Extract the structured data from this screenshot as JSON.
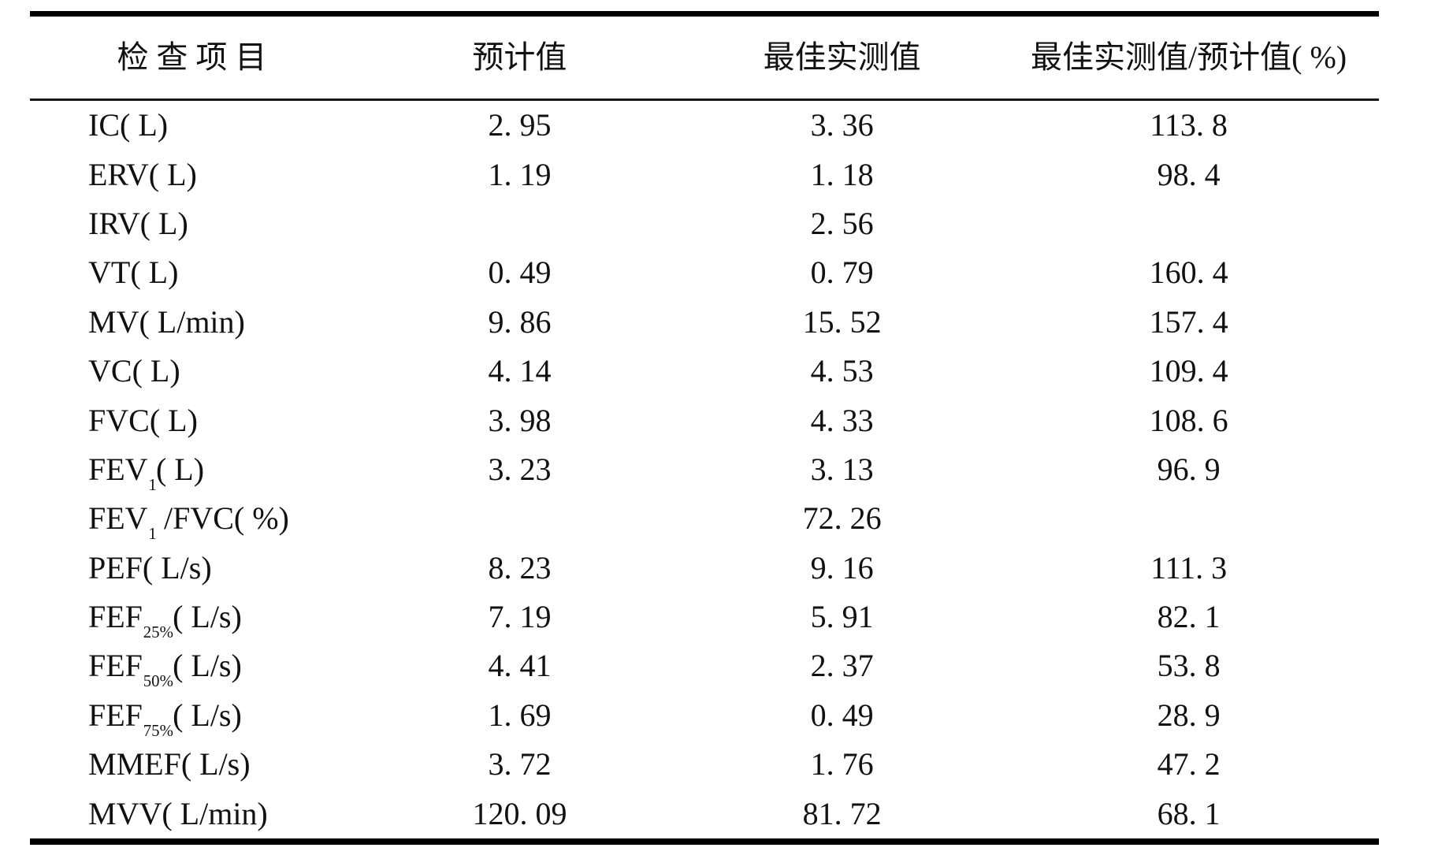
{
  "colors": {
    "background": "#ffffff",
    "text": "#111111",
    "rule": "#000000"
  },
  "table": {
    "headers": {
      "item": "检 查 项 目",
      "predicted": "预计值",
      "best": "最佳实测值",
      "ratio": "最佳实测值/预计值( %)"
    },
    "rows": [
      {
        "item_pre": "IC( L)",
        "item_sub": "",
        "item_post": "",
        "pred": "2. 95",
        "best": "3. 36",
        "ratio": "113. 8"
      },
      {
        "item_pre": "ERV( L)",
        "item_sub": "",
        "item_post": "",
        "pred": "1. 19",
        "best": "1. 18",
        "ratio": "98. 4"
      },
      {
        "item_pre": "IRV( L)",
        "item_sub": "",
        "item_post": "",
        "pred": "",
        "best": "2. 56",
        "ratio": ""
      },
      {
        "item_pre": "VT( L)",
        "item_sub": "",
        "item_post": "",
        "pred": "0. 49",
        "best": "0. 79",
        "ratio": "160. 4"
      },
      {
        "item_pre": "MV( L/min)",
        "item_sub": "",
        "item_post": "",
        "pred": "9. 86",
        "best": "15. 52",
        "ratio": "157. 4"
      },
      {
        "item_pre": "VC( L)",
        "item_sub": "",
        "item_post": "",
        "pred": "4. 14",
        "best": "4. 53",
        "ratio": "109. 4"
      },
      {
        "item_pre": "FVC( L)",
        "item_sub": "",
        "item_post": "",
        "pred": "3. 98",
        "best": "4. 33",
        "ratio": "108. 6"
      },
      {
        "item_pre": "FEV",
        "item_sub": "1",
        "item_post": "( L)",
        "pred": "3. 23",
        "best": "3. 13",
        "ratio": "96. 9"
      },
      {
        "item_pre": "FEV",
        "item_sub": "1",
        "item_post": " /FVC( %)",
        "pred": "",
        "best": "72. 26",
        "ratio": ""
      },
      {
        "item_pre": "PEF( L/s)",
        "item_sub": "",
        "item_post": "",
        "pred": "8. 23",
        "best": "9. 16",
        "ratio": "111. 3"
      },
      {
        "item_pre": "FEF",
        "item_sub": "25%",
        "item_post": "( L/s)",
        "pred": "7. 19",
        "best": "5. 91",
        "ratio": "82. 1"
      },
      {
        "item_pre": "FEF",
        "item_sub": "50%",
        "item_post": "( L/s)",
        "pred": "4. 41",
        "best": "2. 37",
        "ratio": "53. 8"
      },
      {
        "item_pre": "FEF",
        "item_sub": "75%",
        "item_post": "( L/s)",
        "pred": "1. 69",
        "best": "0. 49",
        "ratio": "28. 9"
      },
      {
        "item_pre": "MMEF( L/s)",
        "item_sub": "",
        "item_post": "",
        "pred": "3. 72",
        "best": "1. 76",
        "ratio": "47. 2"
      },
      {
        "item_pre": "MVV( L/min)",
        "item_sub": "",
        "item_post": "",
        "pred": "120. 09",
        "best": "81. 72",
        "ratio": "68. 1"
      }
    ]
  }
}
